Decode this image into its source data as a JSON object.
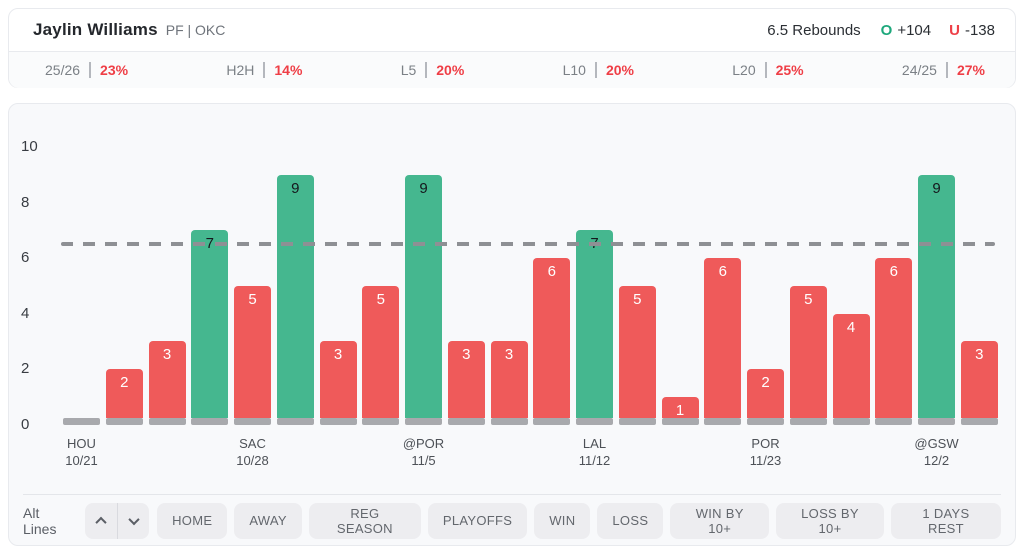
{
  "header": {
    "player_name": "Jaylin Williams",
    "player_meta": "PF | OKC",
    "line_label": "6.5 Rebounds",
    "over_symbol": "O",
    "over_odds": "+104",
    "under_symbol": "U",
    "under_odds": "-138",
    "stats": [
      {
        "label": "25/26",
        "value": "23%"
      },
      {
        "label": "H2H",
        "value": "14%"
      },
      {
        "label": "L5",
        "value": "20%"
      },
      {
        "label": "L10",
        "value": "20%"
      },
      {
        "label": "L20",
        "value": "25%"
      },
      {
        "label": "24/25",
        "value": "27%"
      }
    ]
  },
  "chart_data": {
    "type": "bar",
    "ylim": [
      0,
      10.5
    ],
    "y_ticks": [
      0,
      2,
      4,
      6,
      8,
      10
    ],
    "threshold": 6.5,
    "bars": [
      {
        "value": 0,
        "team": "HOU",
        "date": "10/21"
      },
      {
        "value": 2
      },
      {
        "value": 3
      },
      {
        "value": 7
      },
      {
        "value": 5,
        "team": "SAC",
        "date": "10/28"
      },
      {
        "value": 9
      },
      {
        "value": 3
      },
      {
        "value": 5
      },
      {
        "value": 9,
        "team": "@POR",
        "date": "11/5"
      },
      {
        "value": 3
      },
      {
        "value": 3
      },
      {
        "value": 6
      },
      {
        "value": 7,
        "team": "LAL",
        "date": "11/12"
      },
      {
        "value": 5
      },
      {
        "value": 1
      },
      {
        "value": 6
      },
      {
        "value": 2,
        "team": "POR",
        "date": "11/23"
      },
      {
        "value": 5
      },
      {
        "value": 4
      },
      {
        "value": 6
      },
      {
        "value": 9,
        "team": "@GSW",
        "date": "12/2"
      },
      {
        "value": 3
      }
    ],
    "colors": {
      "over": "#45b78f",
      "under": "#ef5a5a",
      "base_stub": "#a8a9ad",
      "threshold_line": "#8e9094",
      "label_on_over": "#15181d",
      "label_on_under": "#ffffff"
    }
  },
  "filters": {
    "alt_lines_label": "Alt Lines",
    "buttons": [
      "HOME",
      "AWAY",
      "REG SEASON",
      "PLAYOFFS",
      "WIN",
      "LOSS",
      "WIN BY 10+",
      "LOSS BY 10+",
      "1 DAYS REST"
    ]
  }
}
